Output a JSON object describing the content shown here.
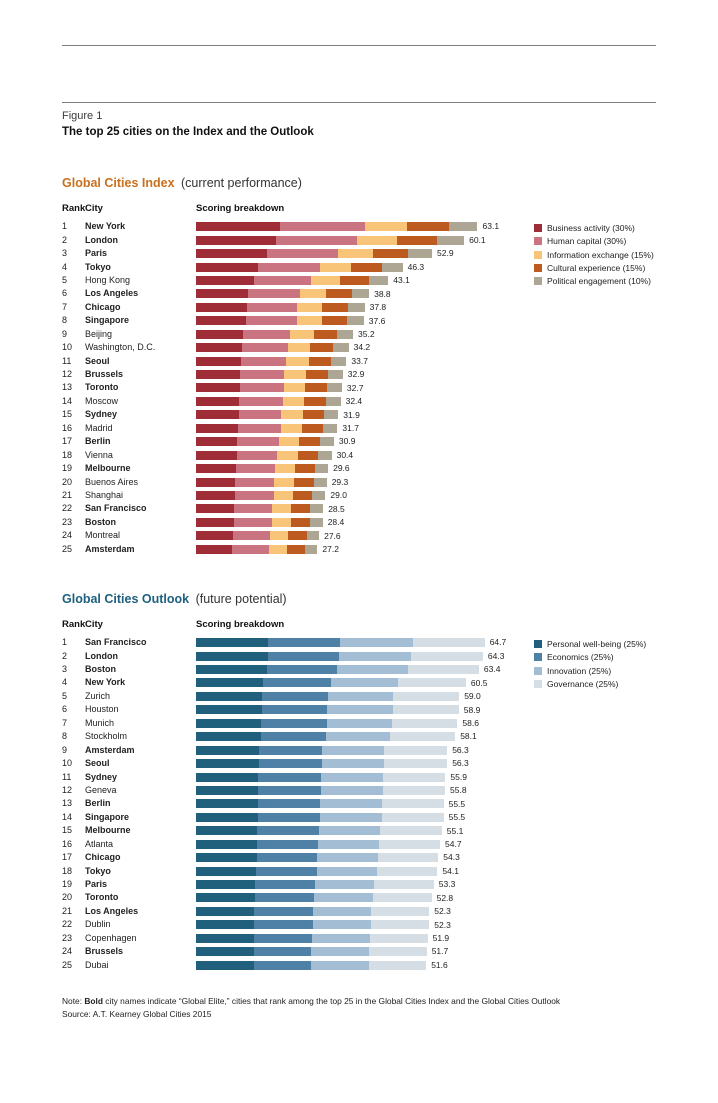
{
  "figure": {
    "label": "Figure 1",
    "title": "The top 25 cities on the Index and the Outlook"
  },
  "note": {
    "prefix": "Note: ",
    "bold": "Bold",
    "rest": " city names indicate “Global Elite,” cities that rank among the top 25 in the Global Cities Index and the Global Cities Outlook"
  },
  "source": "Source: A.T. Kearney Global Cities 2015",
  "chart_data": [
    {
      "type": "bar",
      "orientation": "horizontal-stacked",
      "title": "Global Cities Index",
      "subtitle": "(current performance)",
      "title_color": "#c8701e",
      "col_headers": [
        "Rank",
        "City",
        "Scoring breakdown"
      ],
      "xlim": [
        0,
        65
      ],
      "grid": false,
      "legend_position": "right",
      "legend": [
        {
          "label": "Business activity (30%)",
          "color": "#9e2d38",
          "weight": 0.3
        },
        {
          "label": "Human capital (30%)",
          "color": "#c97480",
          "weight": 0.3
        },
        {
          "label": "Information exchange (15%)",
          "color": "#f7c478",
          "weight": 0.15
        },
        {
          "label": "Cultural experience (15%)",
          "color": "#bd5a20",
          "weight": 0.15
        },
        {
          "label": "Political engagement (10%)",
          "color": "#aea695",
          "weight": 0.1
        }
      ],
      "rows": [
        {
          "rank": 1,
          "city": "New York",
          "bold": true,
          "total": "63.1"
        },
        {
          "rank": 2,
          "city": "London",
          "bold": true,
          "total": "60.1"
        },
        {
          "rank": 3,
          "city": "Paris",
          "bold": true,
          "total": "52.9"
        },
        {
          "rank": 4,
          "city": "Tokyo",
          "bold": true,
          "total": "46.3"
        },
        {
          "rank": 5,
          "city": "Hong Kong",
          "bold": false,
          "total": "43.1"
        },
        {
          "rank": 6,
          "city": "Los Angeles",
          "bold": true,
          "total": "38.8"
        },
        {
          "rank": 7,
          "city": "Chicago",
          "bold": true,
          "total": "37.8"
        },
        {
          "rank": 8,
          "city": "Singapore",
          "bold": true,
          "total": "37.6"
        },
        {
          "rank": 9,
          "city": "Beijing",
          "bold": false,
          "total": "35.2"
        },
        {
          "rank": 10,
          "city": "Washington, D.C.",
          "bold": false,
          "total": "34.2"
        },
        {
          "rank": 11,
          "city": "Seoul",
          "bold": true,
          "total": "33.7"
        },
        {
          "rank": 12,
          "city": "Brussels",
          "bold": true,
          "total": "32.9"
        },
        {
          "rank": 13,
          "city": "Toronto",
          "bold": true,
          "total": "32.7"
        },
        {
          "rank": 14,
          "city": "Moscow",
          "bold": false,
          "total": "32.4"
        },
        {
          "rank": 15,
          "city": "Sydney",
          "bold": true,
          "total": "31.9"
        },
        {
          "rank": 16,
          "city": "Madrid",
          "bold": false,
          "total": "31.7"
        },
        {
          "rank": 17,
          "city": "Berlin",
          "bold": true,
          "total": "30.9"
        },
        {
          "rank": 18,
          "city": "Vienna",
          "bold": false,
          "total": "30.4"
        },
        {
          "rank": 19,
          "city": "Melbourne",
          "bold": true,
          "total": "29.6"
        },
        {
          "rank": 20,
          "city": "Buenos Aires",
          "bold": false,
          "total": "29.3"
        },
        {
          "rank": 21,
          "city": "Shanghai",
          "bold": false,
          "total": "29.0"
        },
        {
          "rank": 22,
          "city": "San Francisco",
          "bold": true,
          "total": "28.5"
        },
        {
          "rank": 23,
          "city": "Boston",
          "bold": true,
          "total": "28.4"
        },
        {
          "rank": 24,
          "city": "Montreal",
          "bold": false,
          "total": "27.6"
        },
        {
          "rank": 25,
          "city": "Amsterdam",
          "bold": true,
          "total": "27.2"
        }
      ]
    },
    {
      "type": "bar",
      "orientation": "horizontal-stacked",
      "title": "Global Cities Outlook",
      "subtitle": "(future potential)",
      "title_color": "#1e607f",
      "col_headers": [
        "Rank",
        "City",
        "Scoring breakdown"
      ],
      "xlim": [
        0,
        65
      ],
      "grid": false,
      "legend_position": "right",
      "legend": [
        {
          "label": "Personal well-being (25%)",
          "color": "#20607c",
          "weight": 0.25
        },
        {
          "label": "Economics (25%)",
          "color": "#4f81a6",
          "weight": 0.25
        },
        {
          "label": "Innovation (25%)",
          "color": "#a3bed4",
          "weight": 0.25
        },
        {
          "label": "Governance (25%)",
          "color": "#d5dee4",
          "weight": 0.25
        }
      ],
      "rows": [
        {
          "rank": 1,
          "city": "San Francisco",
          "bold": true,
          "total": "64.7"
        },
        {
          "rank": 2,
          "city": "London",
          "bold": true,
          "total": "64.3"
        },
        {
          "rank": 3,
          "city": "Boston",
          "bold": true,
          "total": "63.4"
        },
        {
          "rank": 4,
          "city": "New York",
          "bold": true,
          "total": "60.5"
        },
        {
          "rank": 5,
          "city": "Zurich",
          "bold": false,
          "total": "59.0"
        },
        {
          "rank": 6,
          "city": "Houston",
          "bold": false,
          "total": "58.9"
        },
        {
          "rank": 7,
          "city": "Munich",
          "bold": false,
          "total": "58.6"
        },
        {
          "rank": 8,
          "city": "Stockholm",
          "bold": false,
          "total": "58.1"
        },
        {
          "rank": 9,
          "city": "Amsterdam",
          "bold": true,
          "total": "56.3"
        },
        {
          "rank": 10,
          "city": "Seoul",
          "bold": true,
          "total": "56.3"
        },
        {
          "rank": 11,
          "city": "Sydney",
          "bold": true,
          "total": "55.9"
        },
        {
          "rank": 12,
          "city": "Geneva",
          "bold": false,
          "total": "55.8"
        },
        {
          "rank": 13,
          "city": "Berlin",
          "bold": true,
          "total": "55.5"
        },
        {
          "rank": 14,
          "city": "Singapore",
          "bold": true,
          "total": "55.5"
        },
        {
          "rank": 15,
          "city": "Melbourne",
          "bold": true,
          "total": "55.1"
        },
        {
          "rank": 16,
          "city": "Atlanta",
          "bold": false,
          "total": "54.7"
        },
        {
          "rank": 17,
          "city": "Chicago",
          "bold": true,
          "total": "54.3"
        },
        {
          "rank": 18,
          "city": "Tokyo",
          "bold": true,
          "total": "54.1"
        },
        {
          "rank": 19,
          "city": "Paris",
          "bold": true,
          "total": "53.3"
        },
        {
          "rank": 20,
          "city": "Toronto",
          "bold": true,
          "total": "52.8"
        },
        {
          "rank": 21,
          "city": "Los Angeles",
          "bold": true,
          "total": "52.3"
        },
        {
          "rank": 22,
          "city": "Dublin",
          "bold": false,
          "total": "52.3"
        },
        {
          "rank": 23,
          "city": "Copenhagen",
          "bold": false,
          "total": "51.9"
        },
        {
          "rank": 24,
          "city": "Brussels",
          "bold": true,
          "total": "51.7"
        },
        {
          "rank": 25,
          "city": "Dubai",
          "bold": false,
          "total": "51.6"
        }
      ]
    }
  ]
}
